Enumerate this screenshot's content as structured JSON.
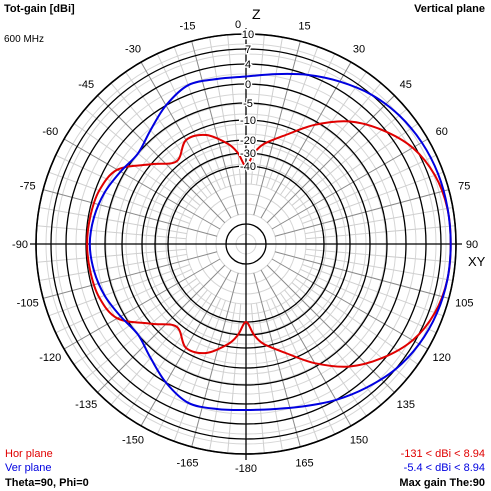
{
  "header": {
    "quantity": "Tot-gain [dBi]",
    "frequency": "600 MHz",
    "plane": "Vertical plane"
  },
  "footer": {
    "hor_label": "Hor plane",
    "ver_label": "Ver plane",
    "angles": "Theta=90, Phi=0",
    "hor_range": "-131 < dBi < 8.94",
    "ver_range": "-5.4 < dBi < 8.94",
    "max_gain": "Max gain The:90"
  },
  "colors": {
    "hor": "#e00000",
    "ver": "#0000e0",
    "grid": "#bdbdbd",
    "axis": "#000000"
  },
  "chart_data": {
    "type": "polar",
    "axis_labels": {
      "top": "Z",
      "right": "XY"
    },
    "angle_ticks": [
      0,
      15,
      30,
      45,
      60,
      75,
      90,
      105,
      120,
      135,
      150,
      165,
      -180,
      -165,
      -150,
      -135,
      -120,
      -105,
      -90,
      -75,
      -60,
      -45,
      -30,
      -15
    ],
    "radial_ticks": [
      "10",
      "7",
      "4",
      "0",
      "-5",
      "-10",
      "-20",
      "-30",
      "-40"
    ],
    "radial_levels_db": [
      10,
      7,
      4,
      0,
      -5,
      -10,
      -20,
      -30,
      -40
    ],
    "series": [
      {
        "name": "Hor plane",
        "angles_deg": [
          0,
          5,
          10,
          20,
          30,
          40,
          50,
          60,
          70,
          80,
          90,
          100,
          110,
          120,
          130,
          140,
          150,
          160,
          170,
          175,
          180,
          -175,
          -170,
          -160,
          -150,
          -140,
          -130,
          -120,
          -110,
          -100,
          -90,
          -80,
          -70,
          -60,
          -50,
          -40,
          -30,
          -20,
          -10,
          -5
        ],
        "gain_dbi": [
          -40,
          -30,
          -22,
          -14,
          -6,
          0,
          3.5,
          6.5,
          8.2,
          8.9,
          8.94,
          8.9,
          8.2,
          6.5,
          3.5,
          0,
          -6,
          -14,
          -22,
          -30,
          -40,
          -30,
          -22,
          -14,
          -12,
          -18,
          -10,
          -3,
          -1,
          -0.5,
          -0.3,
          -0.5,
          -1,
          -3,
          -10,
          -18,
          -12,
          -14,
          -22,
          -30
        ]
      },
      {
        "name": "Ver plane",
        "angles_deg": [
          0,
          10,
          20,
          30,
          40,
          50,
          60,
          70,
          80,
          90,
          100,
          110,
          120,
          130,
          140,
          150,
          160,
          170,
          180,
          -170,
          -160,
          -150,
          -140,
          -130,
          -120,
          -110,
          -100,
          -90,
          -80,
          -70,
          -60,
          -50,
          -40,
          -30,
          -20,
          -10
        ],
        "gain_dbi": [
          1.5,
          2.5,
          4,
          5.5,
          7,
          8,
          8.6,
          8.9,
          8.94,
          8.94,
          8.9,
          8.6,
          8,
          7,
          5.5,
          4,
          2.5,
          1.5,
          1.2,
          1.5,
          1.8,
          0,
          -3,
          -5,
          -4,
          -2.5,
          -1.5,
          -1,
          -1.5,
          -2.5,
          -4,
          -5,
          -3,
          0,
          1.8,
          1.5
        ]
      }
    ]
  }
}
